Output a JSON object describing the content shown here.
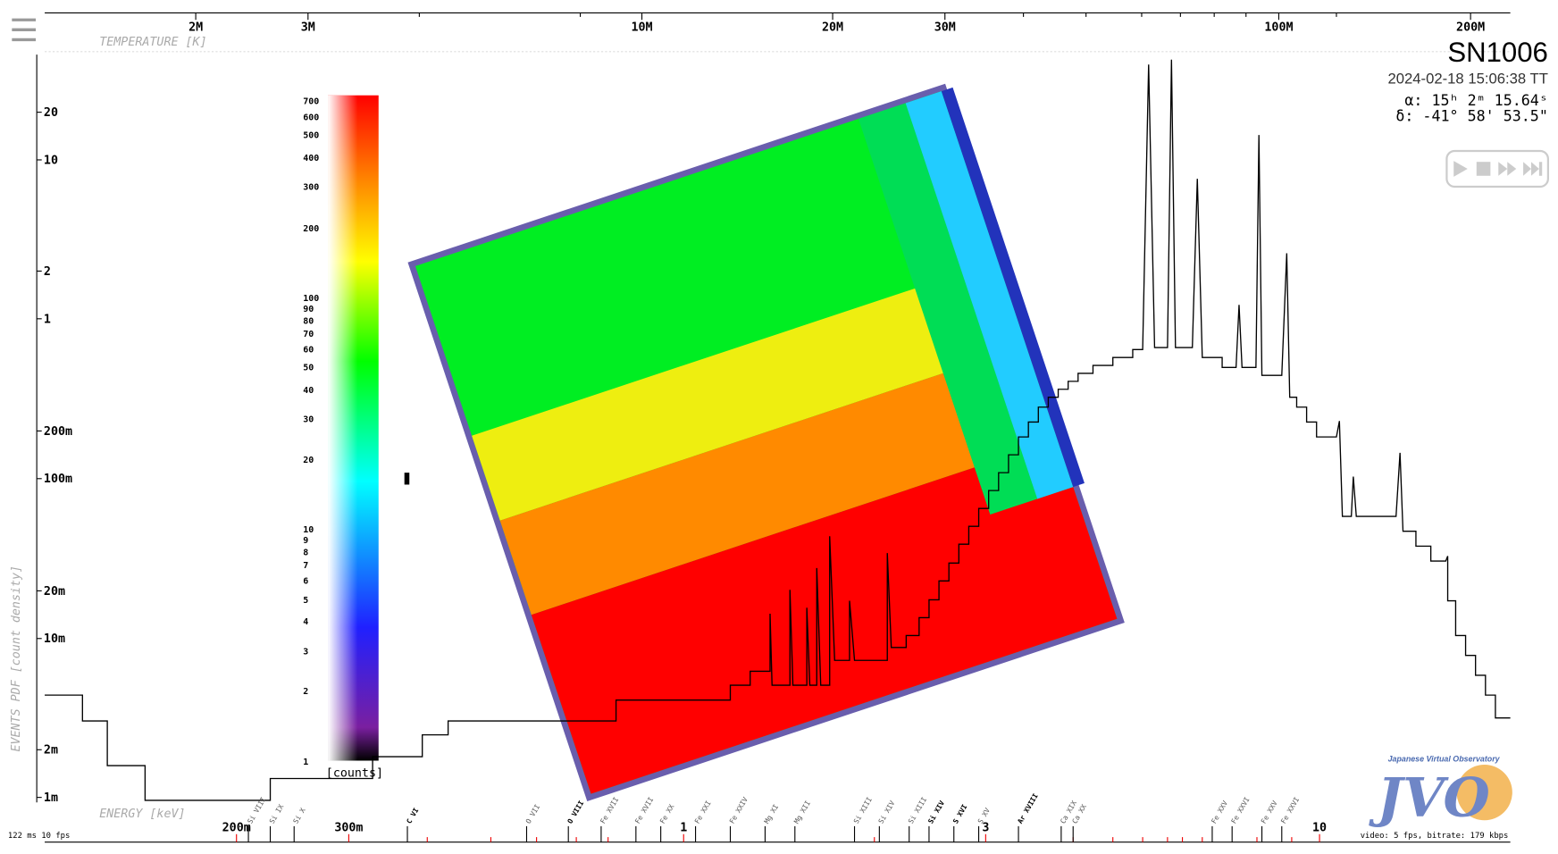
{
  "header": {
    "title": "SN1006",
    "datetime": "2024-02-18 15:06:38 TT",
    "ra": "α: 15ʰ 2ᵐ 15.64ˢ",
    "dec": "δ: -41° 58' 53.5\""
  },
  "temperature_axis": {
    "label": "TEMPERATURE [K]",
    "ticks": [
      "2M",
      "3M",
      "10M",
      "20M",
      "30M",
      "100M",
      "200M"
    ]
  },
  "energy_axis": {
    "label": "ENERGY [keV]",
    "ticks": [
      "200m",
      "300m",
      "1",
      "3",
      "10"
    ]
  },
  "density_axis": {
    "label": "EVENTS PDF [count density]",
    "ticks": [
      "20",
      "10",
      "2",
      "1",
      "200m",
      "100m",
      "20m",
      "10m",
      "2m",
      "1m"
    ]
  },
  "colorbar": {
    "unit": "[counts]",
    "ticks": [
      "700",
      "600",
      "500",
      "400",
      "300",
      "200",
      "100",
      "90",
      "80",
      "70",
      "60",
      "50",
      "40",
      "30",
      "20",
      "10",
      "9",
      "8",
      "7",
      "6",
      "5",
      "4",
      "3",
      "2",
      "1"
    ]
  },
  "lines": [
    "Si VIII",
    "Si IX",
    "Si X",
    "C VI",
    "O VII",
    "O VIII",
    "Fe XVII",
    "Fe XVII",
    "Fe XX",
    "Fe XXI",
    "Fe XXIV",
    "Mg XI",
    "Mg XII",
    "Si XIII",
    "Si XIV",
    "Si XIII",
    "Si XIV",
    "S XVI",
    "S XV",
    "Ar XVIII",
    "Ca XIX",
    "Ca XX",
    "Fe XXV",
    "Fe XXVI",
    "Fe XXV",
    "Fe XXVI"
  ],
  "status": {
    "fps": "122 ms 10 fps",
    "video": "video: 5 fps, bitrate: 179 kbps"
  },
  "logo": {
    "caption": "Japanese Virtual Observatory"
  }
}
